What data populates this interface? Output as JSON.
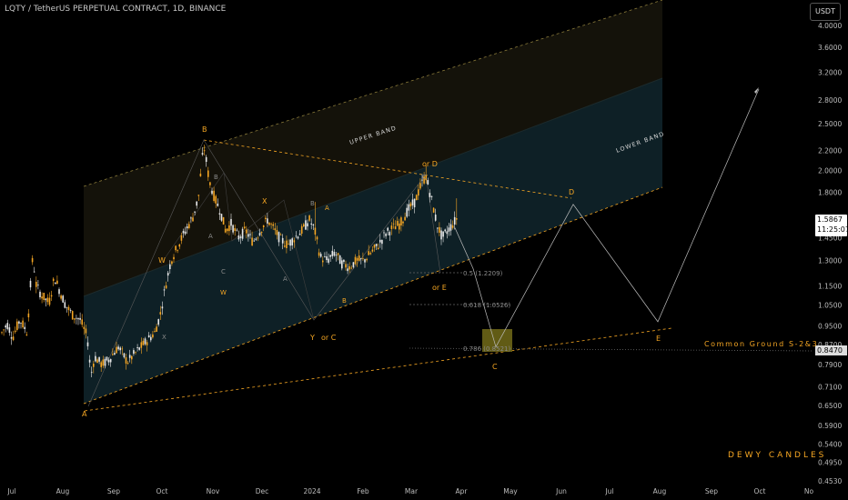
{
  "header": {
    "symbol_title": "LQTY / TetherUS PERPETUAL CONTRACT, 1D, BINANCE",
    "currency_button": "USDT"
  },
  "price": {
    "last": "1.5867",
    "countdown": "11:25:07",
    "reference_level": "0.8470"
  },
  "notes": {
    "common_ground": "Common Ground S-2&3",
    "brand": "DEWY CANDLES"
  },
  "colors": {
    "background": "#000000",
    "candle_orange": "#f5a623",
    "candle_white": "#e8e8e8",
    "upper_band_fill": "#15130b",
    "lower_band_fill": "#0f2228",
    "label_orange": "#f5a623",
    "label_gray": "#8a8a8a",
    "target_box": "#6b6517"
  },
  "chart_data": {
    "type": "candlestick",
    "y_scale": "log",
    "y_axis_ticks": [
      "4.0000",
      "3.6000",
      "3.2000",
      "2.8000",
      "2.5000",
      "2.2000",
      "2.0000",
      "1.8000",
      "1.6000",
      "1.4500",
      "1.3000",
      "1.1500",
      "1.0500",
      "0.9500",
      "0.8700",
      "0.7900",
      "0.7100",
      "0.6500",
      "0.5900",
      "0.5400",
      "0.4950",
      "0.4530"
    ],
    "x_axis_ticks": [
      "Jul",
      "Aug",
      "Sep",
      "Oct",
      "Nov",
      "Dec",
      "2024",
      "Feb",
      "Mar",
      "Apr",
      "May",
      "Jun",
      "Jul",
      "Aug",
      "Sep",
      "Oct",
      "No"
    ],
    "band_labels": [
      "UPPER BAND",
      "LOWER BAND"
    ],
    "fib_levels": [
      {
        "label": "0.5 (1.2209)",
        "value": 1.2209
      },
      {
        "label": "0.618 (1.0526)",
        "value": 1.0526
      },
      {
        "label": "0.786 (0.8521)",
        "value": 0.8521
      }
    ],
    "wave_labels": [
      {
        "text": "A",
        "color": "orange"
      },
      {
        "text": "B",
        "color": "orange"
      },
      {
        "text": "W",
        "color": "orange"
      },
      {
        "text": "X",
        "color": "orange"
      },
      {
        "text": "Y",
        "color": "orange"
      },
      {
        "text": "or C",
        "color": "orange"
      },
      {
        "text": "or D",
        "color": "orange"
      },
      {
        "text": "or E",
        "color": "orange"
      },
      {
        "text": "D",
        "color": "orange"
      },
      {
        "text": "E",
        "color": "orange"
      },
      {
        "text": "C",
        "color": "orange"
      },
      {
        "text": "A",
        "color": "orange"
      },
      {
        "text": "B",
        "color": "orange"
      },
      {
        "text": "W",
        "color": "orange"
      },
      {
        "text": "B",
        "color": "gray"
      },
      {
        "text": "A",
        "color": "gray"
      },
      {
        "text": "C",
        "color": "gray"
      },
      {
        "text": "A",
        "color": "gray"
      },
      {
        "text": "B",
        "color": "gray"
      },
      {
        "text": "C",
        "color": "gray"
      },
      {
        "text": "X",
        "color": "gray"
      }
    ],
    "candles_summary": {
      "start": "Jul 2023",
      "last_close": 1.5867,
      "high_point_approx": 2.3,
      "low_point_approx": 0.65
    },
    "projection_path": [
      {
        "x": "2024-03-25",
        "y": 1.52
      },
      {
        "x": "2024-04-20",
        "y": 1.25
      },
      {
        "x": "2024-05-01",
        "y": 0.86
      },
      {
        "x": "2024-06-08",
        "y": 1.7
      },
      {
        "x": "2024-08-01",
        "y": 0.97
      },
      {
        "x": "2024-10-01",
        "y": 2.95
      }
    ]
  }
}
